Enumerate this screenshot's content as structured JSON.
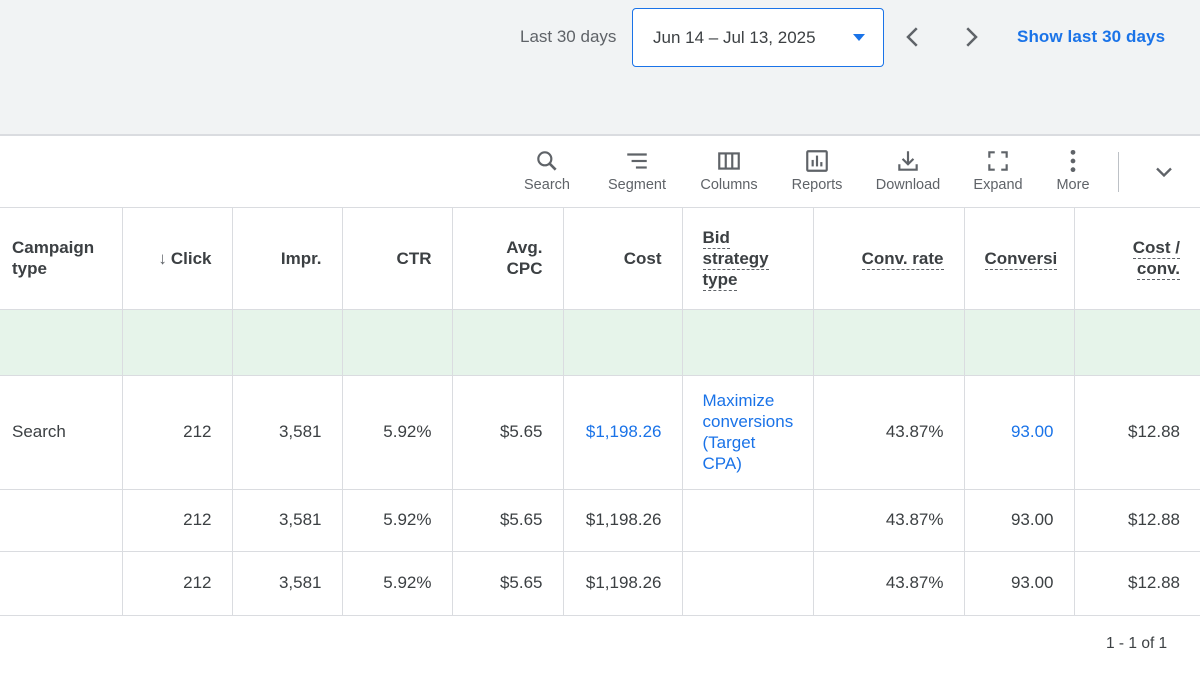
{
  "date_bar": {
    "range_label": "Last 30 days",
    "date_range": "Jun 14 – Jul 13, 2025",
    "show_link": "Show last 30 days"
  },
  "toolbar": {
    "items": [
      {
        "label": "Search",
        "icon": "search-icon"
      },
      {
        "label": "Segment",
        "icon": "segment-icon"
      },
      {
        "label": "Columns",
        "icon": "columns-icon"
      },
      {
        "label": "Reports",
        "icon": "reports-icon"
      },
      {
        "label": "Download",
        "icon": "download-icon"
      },
      {
        "label": "Expand",
        "icon": "expand-icon"
      },
      {
        "label": "More",
        "icon": "more-vert-icon"
      }
    ]
  },
  "table": {
    "headers": {
      "campaign_type": "Campaign type",
      "clicks": "Click",
      "impr": "Impr.",
      "ctr": "CTR",
      "avg_cpc": "Avg. CPC",
      "cost": "Cost",
      "bid_strategy": "Bid strategy type",
      "conv_rate": "Conv. rate",
      "conversions": "Conversi",
      "cost_conv": "Cost / conv."
    },
    "rows": [
      {
        "campaign_type": "Search",
        "clicks": "212",
        "impr": "3,581",
        "ctr": "5.92%",
        "avg_cpc": "$5.65",
        "cost": "$1,198.26",
        "bid_strategy": "Maximize conversions (Target CPA)",
        "conv_rate": "43.87%",
        "conversions": "93.00",
        "cost_conv": "$12.88"
      },
      {
        "campaign_type": "",
        "clicks": "212",
        "impr": "3,581",
        "ctr": "5.92%",
        "avg_cpc": "$5.65",
        "cost": "$1,198.26",
        "bid_strategy": "",
        "conv_rate": "43.87%",
        "conversions": "93.00",
        "cost_conv": "$12.88"
      },
      {
        "campaign_type": "",
        "clicks": "212",
        "impr": "3,581",
        "ctr": "5.92%",
        "avg_cpc": "$5.65",
        "cost": "$1,198.26",
        "bid_strategy": "",
        "conv_rate": "43.87%",
        "conversions": "93.00",
        "cost_conv": "$12.88"
      }
    ]
  },
  "pagination": "1 - 1 of 1",
  "colors": {
    "accent": "#1a73e8",
    "highlight_row": "#e6f4ea",
    "topbar_bg": "#f1f3f4"
  }
}
